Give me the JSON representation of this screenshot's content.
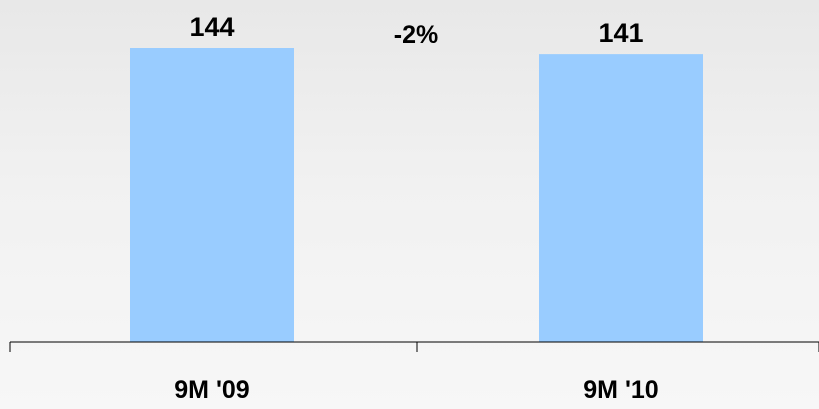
{
  "chart_data": {
    "type": "bar",
    "categories": [
      "9M '09",
      "9M '10"
    ],
    "values": [
      144,
      141
    ],
    "data_labels": [
      "144",
      "141"
    ],
    "annotation": "-2%",
    "bar_color": "#99ccff",
    "axis_color": "#000000",
    "ylim": [
      0,
      150
    ]
  }
}
